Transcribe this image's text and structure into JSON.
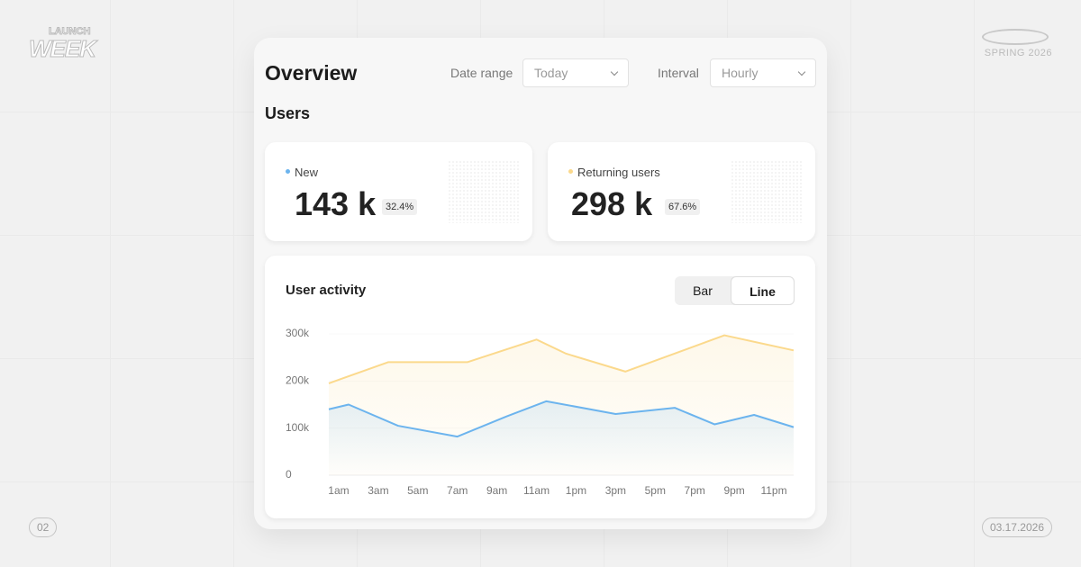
{
  "branding": {
    "logo_top": "LAUNCH",
    "logo_bottom": "WEEK",
    "season": "SPRING 2026",
    "episode": "02",
    "date": "03.17.2026"
  },
  "header": {
    "title": "Overview",
    "date_range_label": "Date range",
    "date_range_value": "Today",
    "interval_label": "Interval",
    "interval_value": "Hourly"
  },
  "section_title": "Users",
  "cards": [
    {
      "label": "New",
      "value": "143 k",
      "share": "32.4%",
      "color": "#6cb4ee"
    },
    {
      "label": "Returning users",
      "value": "298 k",
      "share": "67.6%",
      "color": "#fbd98c"
    }
  ],
  "activity": {
    "toggle": [
      "Bar",
      "Line"
    ],
    "chart_data": {
      "type": "line",
      "title": "User activity",
      "xlim": [
        0.5,
        24
      ],
      "xticks": [
        {
          "value": 1,
          "label": "1am"
        },
        {
          "value": 3,
          "label": "3am"
        },
        {
          "value": 5,
          "label": "5am"
        },
        {
          "value": 7,
          "label": "7am"
        },
        {
          "value": 9,
          "label": "9am"
        },
        {
          "value": 11,
          "label": "11am"
        },
        {
          "value": 13,
          "label": "1pm"
        },
        {
          "value": 15,
          "label": "3pm"
        },
        {
          "value": 17,
          "label": "5pm"
        },
        {
          "value": 19,
          "label": "7pm"
        },
        {
          "value": 21,
          "label": "9pm"
        },
        {
          "value": 23,
          "label": "11pm"
        }
      ],
      "ylim": [
        0,
        300000
      ],
      "yticks": [
        0,
        {
          "value": 100000,
          "label": "100k"
        },
        {
          "value": 200000,
          "label": "200k"
        },
        {
          "value": 300000,
          "label": "300k"
        }
      ],
      "grid": true,
      "series": [
        {
          "name": "Returning users",
          "color": "#fbd98c",
          "x": [
            0.5,
            3.5,
            7.5,
            11,
            12.5,
            15.5,
            20.5,
            24
          ],
          "values": [
            195000,
            240000,
            240000,
            288000,
            258000,
            220000,
            297000,
            265000
          ]
        },
        {
          "name": "New",
          "color": "#6cb4ee",
          "x": [
            0.5,
            1.5,
            4,
            7,
            9.5,
            11.5,
            15,
            18,
            20,
            22,
            24
          ],
          "values": [
            140000,
            150000,
            105000,
            82000,
            125000,
            157000,
            130000,
            143000,
            108000,
            128000,
            102000
          ]
        }
      ]
    }
  }
}
